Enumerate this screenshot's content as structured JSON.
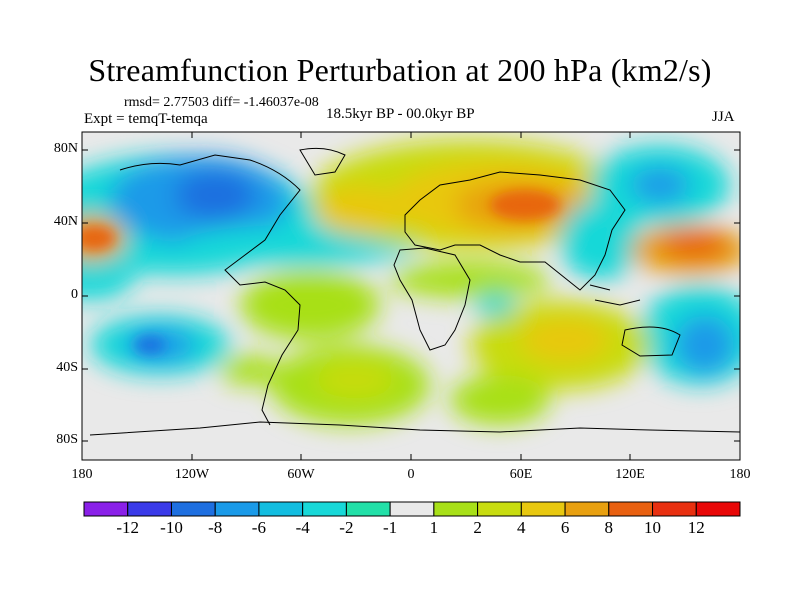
{
  "title": "Streamfunction Perturbation at 200 hPa (km2/s)",
  "stats": "rmsd= 2.77503 diff= -1.46037e-08",
  "experiment": "Expt = temqT-temqa",
  "period": "18.5kyr BP - 00.0kyr BP",
  "season": "JJA",
  "axes": {
    "lat_ticks": [
      "80N",
      "40N",
      "0",
      "40S",
      "80S"
    ],
    "lon_ticks": [
      "180",
      "120W",
      "60W",
      "0",
      "60E",
      "120E",
      "180"
    ]
  },
  "colorbar": {
    "labels": [
      "-12",
      "-10",
      "-8",
      "-6",
      "-4",
      "-2",
      "-1",
      "1",
      "2",
      "4",
      "6",
      "8",
      "10",
      "12"
    ],
    "colors": [
      "#8a20e8",
      "#3a3ae8",
      "#1e6fe0",
      "#1a9ae8",
      "#12bde0",
      "#18d8d8",
      "#22e0a8",
      "#e9e9e9",
      "#a8e018",
      "#c8dc10",
      "#e8c810",
      "#e8a010",
      "#e86010",
      "#e83010",
      "#e80808"
    ]
  },
  "chart_data": {
    "type": "heatmap",
    "title": "Streamfunction Perturbation at 200 hPa (km2/s)",
    "units": "km2/s",
    "lat_range": [
      -90,
      90
    ],
    "lon_range": [
      -180,
      180
    ],
    "levels": [
      -12,
      -10,
      -8,
      -6,
      -4,
      -2,
      -1,
      1,
      2,
      4,
      6,
      8,
      10,
      12
    ],
    "features": [
      {
        "name": "positive anomaly central Eurasia",
        "lat": 50,
        "lon": 65,
        "value": 9
      },
      {
        "name": "positive anomaly north Atlantic",
        "lat": 45,
        "lon": -20,
        "value": 7
      },
      {
        "name": "positive anomaly north Pacific",
        "lat": 35,
        "lon": 160,
        "value": 9
      },
      {
        "name": "positive anomaly east Pacific",
        "lat": 35,
        "lon": -175,
        "value": 9
      },
      {
        "name": "positive anomaly south Indian Ocean",
        "lat": -30,
        "lon": 85,
        "value": 6
      },
      {
        "name": "positive anomaly south Atlantic",
        "lat": -45,
        "lon": -25,
        "value": 4
      },
      {
        "name": "negative anomaly North America",
        "lat": 50,
        "lon": -100,
        "value": -8
      },
      {
        "name": "negative anomaly north Pacific",
        "lat": 60,
        "lon": 145,
        "value": -6
      },
      {
        "name": "negative anomaly south Pacific",
        "lat": -30,
        "lon": -130,
        "value": -8
      },
      {
        "name": "negative anomaly south Pacific",
        "lat": -30,
        "lon": 160,
        "value": -6
      }
    ]
  }
}
